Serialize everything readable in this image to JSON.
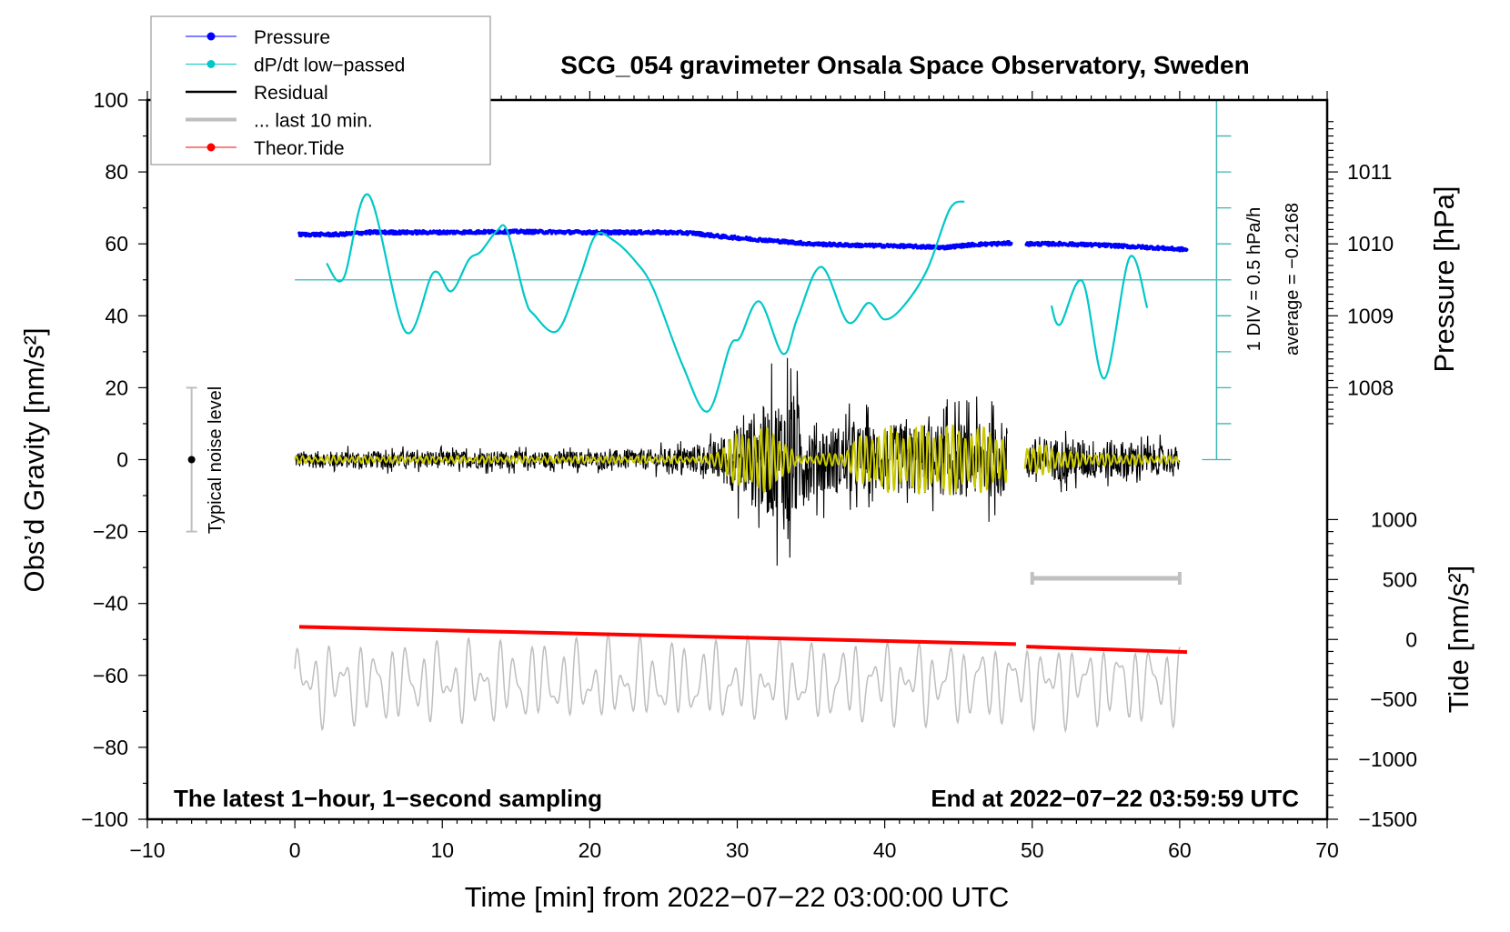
{
  "chart_data": {
    "type": "line",
    "title": "SCG_054 gravimeter Onsala Space Observatory, Sweden",
    "xlabel": "Time [min] from 2022−07−22 03:00:00 UTC",
    "ylabel": "Obs’d Gravity [nm/s²]",
    "ylabel_right_top": "Pressure [hPa]",
    "ylabel_right_bottom": "Tide [nm/s²]",
    "xlim": [
      -10,
      70
    ],
    "ylim": [
      -100,
      100
    ],
    "x_ticks": [
      "−10",
      "0",
      "10",
      "20",
      "30",
      "40",
      "50",
      "60",
      "70"
    ],
    "x_tick_values": [
      -10,
      0,
      10,
      20,
      30,
      40,
      50,
      60,
      70
    ],
    "y_ticks": [
      "100",
      "80",
      "60",
      "40",
      "20",
      "0",
      "−20",
      "−40",
      "−60",
      "−80",
      "−100"
    ],
    "y_tick_values": [
      100,
      80,
      60,
      40,
      20,
      0,
      -20,
      -40,
      -60,
      -80,
      -100
    ],
    "pressure_ticks": [
      "1011",
      "1010",
      "1009",
      "1008"
    ],
    "pressure_tick_values": [
      1011,
      1010,
      1009,
      1008
    ],
    "tide_ticks": [
      "1000",
      "500",
      "0",
      "−500",
      "−1000",
      "−1500"
    ],
    "tide_tick_values": [
      1000,
      500,
      0,
      -500,
      -1000,
      -1500
    ],
    "legend": {
      "position": "top-left",
      "entries": [
        {
          "label": "Pressure",
          "color": "#0000ff",
          "style": "line-dot"
        },
        {
          "label": "dP/dt low−passed",
          "color": "#00c8c8",
          "style": "line-dot"
        },
        {
          "label": "Residual",
          "color": "#000000",
          "style": "line"
        },
        {
          "label": "... last 10 min.",
          "color": "#bebebe",
          "style": "thick-line"
        },
        {
          "label": "Theor.Tide",
          "color": "#ff0000",
          "style": "line-dot"
        }
      ]
    },
    "annotations": {
      "bottom_left": "The latest 1−hour, 1−second sampling",
      "bottom_right": "End at 2022−07−22 03:59:59 UTC",
      "noise_label": "Typical noise level",
      "div_label": "1 DIV = 0.5 hPa/h",
      "average_label": "average = −0.2168"
    },
    "noise_level_bar": {
      "t": -7,
      "range": [
        -20,
        20
      ]
    },
    "last10_bar": {
      "t_range": [
        50,
        60
      ],
      "gravity": -33
    },
    "dpdt_scale": {
      "t": 62.5,
      "gravity_range": [
        0,
        100
      ],
      "div_gravity": 10,
      "hpa_per_div": 0.5,
      "center_gravity": 50
    },
    "series": [
      {
        "name": "Pressure",
        "unit": "hPa",
        "color": "#0000ff",
        "segments": [
          {
            "t": [
              0.3,
              3,
              5,
              10,
              15,
              20,
              25,
              27,
              29,
              32,
              35,
              38,
              41,
              44,
              46,
              48.6
            ],
            "values": [
              1010.13,
              1010.13,
              1010.16,
              1010.16,
              1010.17,
              1010.16,
              1010.16,
              1010.15,
              1010.1,
              1010.05,
              1010.0,
              1009.98,
              1009.97,
              1009.95,
              1009.99,
              1010.01
            ]
          },
          {
            "t": [
              49.6,
              52,
              55,
              58,
              60.5
            ],
            "values": [
              1010.0,
              1010.0,
              1009.98,
              1009.95,
              1009.92
            ]
          }
        ]
      },
      {
        "name": "dP/dt low-passed",
        "unit": "hPa/h",
        "color": "#00c8c8",
        "segments": [
          {
            "t": [
              2.15,
              3.3,
              5.0,
              7.5,
              9.4,
              10.6,
              11.8,
              12.6,
              13.7,
              14.4,
              15.6,
              16.2,
              17.8,
              19.3,
              20.4,
              21.6,
              23.0,
              24.3,
              26.3,
              28.0,
              29.5,
              30.2,
              31.5,
              33.1,
              34.1,
              35.7,
              37.5,
              38.9,
              40.0,
              41.3,
              42.9,
              44.4,
              45.4
            ],
            "values": [
              0.23,
              0.02,
              1.18,
              -0.72,
              0.1,
              -0.16,
              0.28,
              0.39,
              0.68,
              0.68,
              -0.25,
              -0.48,
              -0.71,
              0.02,
              0.62,
              0.55,
              0.28,
              -0.12,
              -1.19,
              -1.83,
              -0.93,
              -0.8,
              -0.3,
              -1.03,
              -0.52,
              0.18,
              -0.59,
              -0.32,
              -0.55,
              -0.36,
              0.15,
              0.98,
              1.09
            ]
          },
          {
            "t": [
              51.3,
              51.9,
              53.4,
              54.9,
              56.6,
              57.8
            ],
            "values": [
              -0.36,
              -0.62,
              -0.02,
              -1.37,
              0.31,
              -0.39
            ]
          }
        ]
      },
      {
        "name": "Residual",
        "unit": "nm/s²",
        "color": "#000000",
        "envelope_t": [
          0,
          10,
          20,
          25,
          28,
          29.5,
          31,
          32.5,
          33.5,
          34.5,
          36,
          40,
          44,
          48,
          49.5,
          52,
          56,
          60
        ],
        "envelope_amp": [
          4,
          4,
          4,
          5,
          7,
          14,
          22,
          28,
          36,
          20,
          16,
          16,
          17,
          18,
          10,
          10,
          9,
          6
        ],
        "gap": [
          48.3,
          49.5
        ],
        "t_range": [
          0,
          60
        ]
      },
      {
        "name": "Residual filtered",
        "unit": "nm/s²",
        "color": "#c8c800",
        "envelope_t": [
          0,
          28,
          29.5,
          31,
          33,
          34,
          37,
          39,
          44,
          47.5,
          49.5,
          51,
          53,
          60
        ],
        "envelope_amp": [
          1,
          1,
          6,
          10,
          8,
          1,
          2,
          9,
          10,
          9,
          5,
          4,
          2,
          1
        ],
        "gap": [
          48.3,
          49.5
        ],
        "t_range": [
          0,
          60
        ]
      },
      {
        "name": "... last 10 min.",
        "unit": "nm/s²",
        "color": "#bebebe",
        "offset": -62,
        "amplitude": 9,
        "t_range": [
          0,
          60
        ]
      },
      {
        "name": "Theor.Tide",
        "unit": "nm/s²",
        "color": "#ff0000",
        "segments": [
          {
            "t": [
              0.3,
              48.9
            ],
            "values": [
              105,
              -39
            ]
          },
          {
            "t": [
              49.6,
              60.5
            ],
            "values": [
              -60,
              -105
            ]
          }
        ]
      }
    ]
  }
}
